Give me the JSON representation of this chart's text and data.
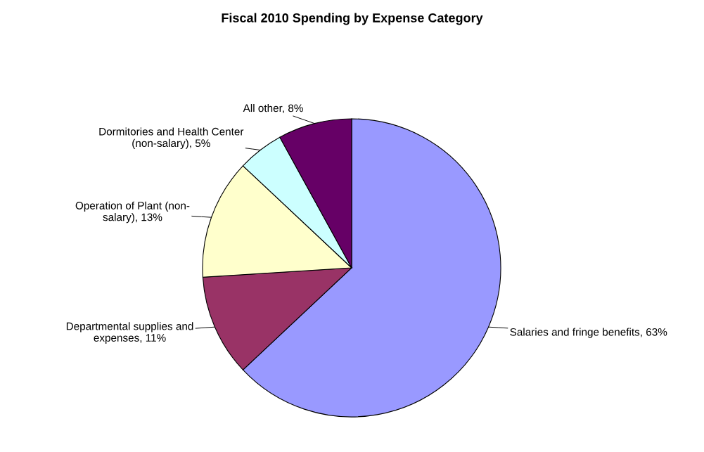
{
  "chart_data": {
    "type": "pie",
    "title": "Fiscal 2010 Spending by Expense Category",
    "categories": [
      "Salaries and fringe benefits",
      "Departmental supplies and expenses",
      "Operation of Plant (non-salary)",
      "Dormitories and Health Center (non-salary)",
      "All other"
    ],
    "values": [
      63,
      11,
      13,
      5,
      8
    ],
    "colors": [
      "#9999ff",
      "#993366",
      "#ffffcc",
      "#ccffff",
      "#660066"
    ],
    "value_labels": [
      "63%",
      "11%",
      "13%",
      "5%",
      "8%"
    ],
    "legend": false
  }
}
